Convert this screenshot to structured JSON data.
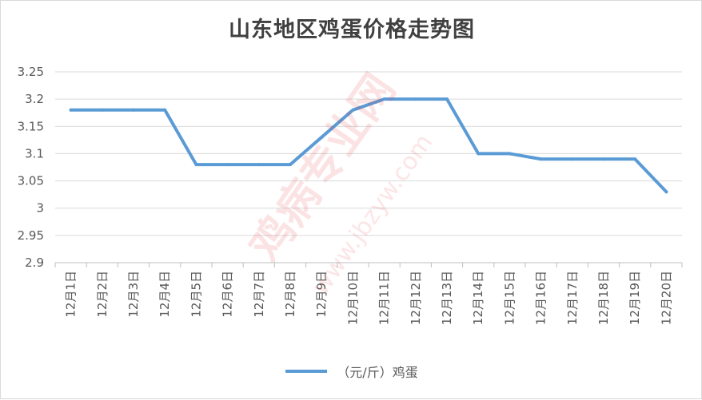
{
  "chart_data": {
    "type": "line",
    "title": "山东地区鸡蛋价格走势图",
    "categories": [
      "12月1日",
      "12月2日",
      "12月3日",
      "12月4日",
      "12月5日",
      "12月6日",
      "12月7日",
      "12月8日",
      "12月9日",
      "12月10日",
      "12月11日",
      "12月12日",
      "12月13日",
      "12月14日",
      "12月15日",
      "12月16日",
      "12月17日",
      "12月18日",
      "12月19日",
      "12月20日"
    ],
    "series": [
      {
        "name": "（元/斤）鸡蛋",
        "values": [
          3.18,
          3.18,
          3.18,
          3.18,
          3.08,
          3.08,
          3.08,
          3.08,
          3.13,
          3.18,
          3.2,
          3.2,
          3.2,
          3.1,
          3.1,
          3.09,
          3.09,
          3.09,
          3.09,
          3.03
        ],
        "color": "#5b9bd5"
      }
    ],
    "ylim": [
      2.9,
      3.25
    ],
    "yticks": [
      "3.25",
      "3.2",
      "3.15",
      "3.1",
      "3.05",
      "3",
      "2.95",
      "2.9"
    ],
    "ytick_values": [
      3.25,
      3.2,
      3.15,
      3.1,
      3.05,
      3.0,
      2.95,
      2.9
    ],
    "grid": true,
    "legend_position": "bottom"
  },
  "watermark": {
    "line1": "鸡病专业网",
    "line2": "www.jbzyw.com"
  }
}
